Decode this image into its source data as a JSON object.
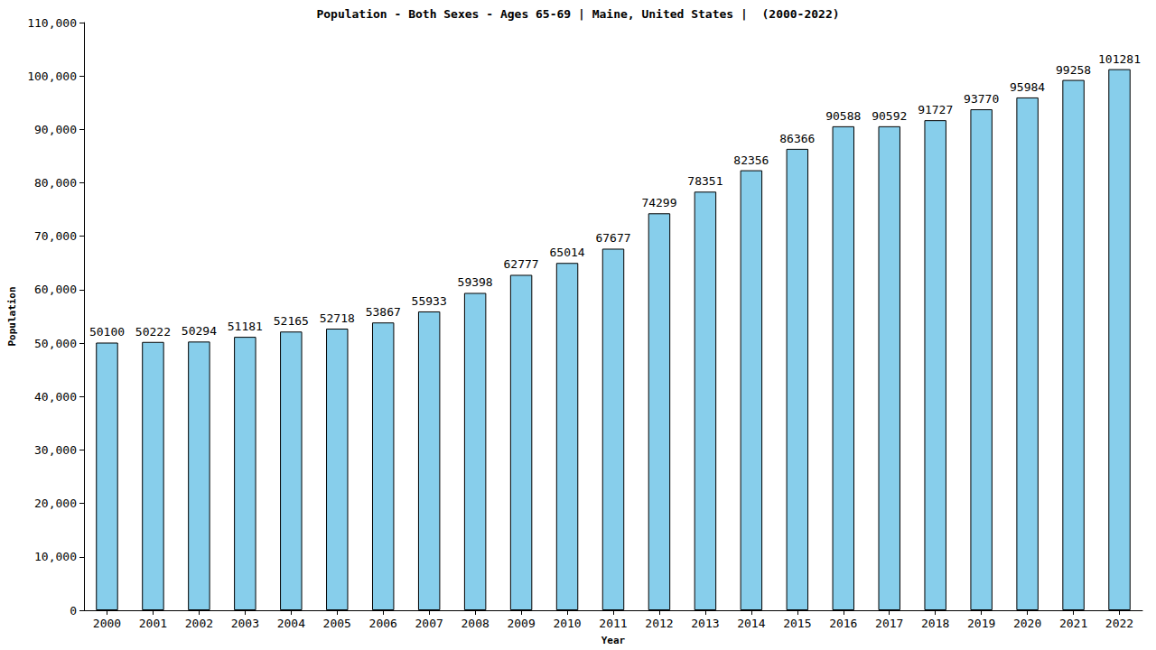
{
  "chart_data": {
    "type": "bar",
    "title": "Population - Both Sexes - Ages 65-69 | Maine, United States |  (2000-2022)",
    "x_label": "Year",
    "y_label": "Population",
    "categories": [
      "2000",
      "2001",
      "2002",
      "2003",
      "2004",
      "2005",
      "2006",
      "2007",
      "2008",
      "2009",
      "2010",
      "2011",
      "2012",
      "2013",
      "2014",
      "2015",
      "2016",
      "2017",
      "2018",
      "2019",
      "2020",
      "2021",
      "2022"
    ],
    "values": [
      50100,
      50222,
      50294,
      51181,
      52165,
      52718,
      53867,
      55933,
      59398,
      62777,
      65014,
      67677,
      74299,
      78351,
      82356,
      86366,
      90588,
      90592,
      91727,
      93770,
      95984,
      99258,
      101281
    ],
    "color": "#87ceeb",
    "ylim": [
      0,
      110000
    ],
    "yticks": [
      0,
      10000,
      20000,
      30000,
      40000,
      50000,
      60000,
      70000,
      80000,
      90000,
      100000,
      110000
    ],
    "grid": false,
    "data_labels": true
  }
}
